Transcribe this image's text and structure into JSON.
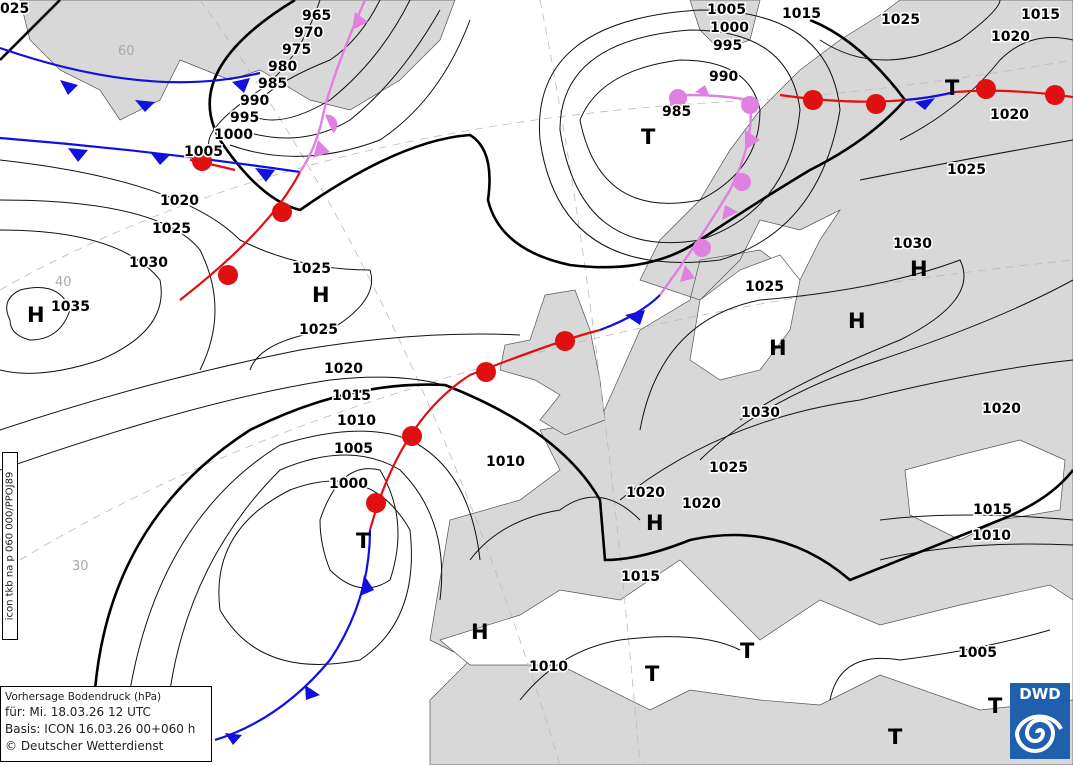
{
  "map": {
    "isobar_labels": [
      "965",
      "970",
      "975",
      "980",
      "985",
      "990",
      "995",
      "1000",
      "1005",
      "1020",
      "1025",
      "1030",
      "1035",
      "1025",
      "1025",
      "1020",
      "1015",
      "1010",
      "1005",
      "1000",
      "1010",
      "1020",
      "1020",
      "1015",
      "1010",
      "1025",
      "1030",
      "1025",
      "1030",
      "1025",
      "1020",
      "1020",
      "1015",
      "1025",
      "1015",
      "1005",
      "1000",
      "995",
      "990",
      "985",
      "1020",
      "1015",
      "1010",
      "1005",
      "025"
    ],
    "pressure_centers": [
      "H",
      "H",
      "H",
      "H",
      "H",
      "H",
      "H",
      "T",
      "T",
      "T",
      "T",
      "T",
      "T",
      "T"
    ],
    "graticule_labels": [
      "40",
      "30",
      "60"
    ],
    "colors": {
      "land": "#d8d8d8",
      "cold_front": "#1010e0",
      "warm_front": "#e01010",
      "occlusion": "#e080e0",
      "logo": "#1f5fae"
    }
  },
  "legend": {
    "title": "Vorhersage Bodendruck (hPa)",
    "valid": "für:  Mi. 18.03.26  12 UTC",
    "basis": "Basis: ICON  16.03.26 00+060 h",
    "copyright": "© Deutscher Wetterdienst"
  },
  "side_code": "icon tkb na p 060 000/PPOJ89",
  "logo": {
    "name": "DWD",
    "icon": "dwd-spiral-logo"
  }
}
